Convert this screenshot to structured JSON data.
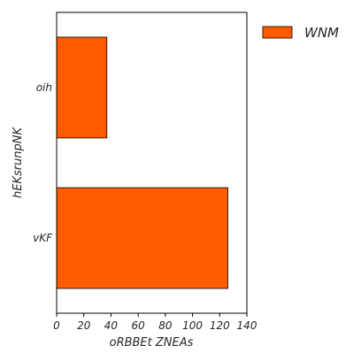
{
  "chart_data": {
    "type": "bar",
    "orientation": "horizontal",
    "categories": [
      "oih",
      "vKF"
    ],
    "series": [
      {
        "name": "WNM",
        "values": [
          37,
          126
        ],
        "color": "#FF5B00"
      }
    ],
    "xlabel": "oRBBEt ZNEAs",
    "ylabel": "hEKsrunpNK",
    "xlim": [
      0,
      140
    ],
    "xticks": [
      0,
      20,
      40,
      60,
      80,
      100,
      120,
      140
    ],
    "grid": false,
    "legend_position": "top-right, outside plot"
  }
}
